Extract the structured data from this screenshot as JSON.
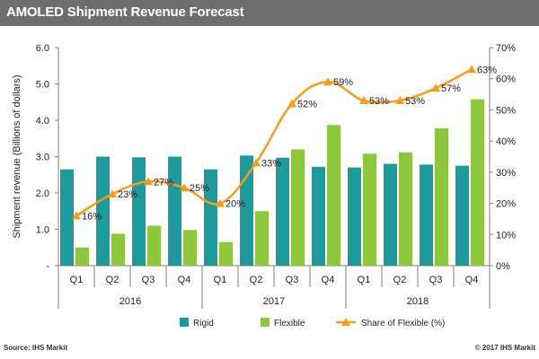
{
  "header": {
    "title": "AMOLED  Shipment Revenue Forecast"
  },
  "footer": {
    "source": "Source:  IHS Markit",
    "copyright": "© 2017  IHS Markit"
  },
  "colors": {
    "rigid": "#1f9a9b",
    "flexible": "#8dc63f",
    "share": "#f39c1f",
    "title_bg": "#6e6e6e"
  },
  "chart_data": {
    "type": "bar",
    "title": "AMOLED  Shipment Revenue Forecast",
    "ylabel": "Shipment revenue  (Billions of dollars)",
    "y2label": "",
    "ylim": [
      0,
      6
    ],
    "y2lim": [
      0,
      70
    ],
    "yticks": [
      "-",
      "1.0",
      "2.0",
      "3.0",
      "4.0",
      "5.0",
      "6.0"
    ],
    "y2ticks": [
      "0%",
      "10%",
      "20%",
      "30%",
      "40%",
      "50%",
      "60%",
      "70%"
    ],
    "categories": [
      "Q1",
      "Q2",
      "Q3",
      "Q4",
      "Q1",
      "Q2",
      "Q3",
      "Q4",
      "Q1",
      "Q2",
      "Q3",
      "Q4"
    ],
    "groups": [
      {
        "label": "2016",
        "count": 4
      },
      {
        "label": "2017",
        "count": 4
      },
      {
        "label": "2018",
        "count": 4
      }
    ],
    "series": [
      {
        "name": "Rigid",
        "type": "bar",
        "axis": "left",
        "values": [
          2.65,
          3.0,
          2.98,
          3.0,
          2.65,
          3.03,
          2.97,
          2.72,
          2.7,
          2.8,
          2.78,
          2.75
        ]
      },
      {
        "name": "Flexible",
        "type": "bar",
        "axis": "left",
        "values": [
          0.5,
          0.88,
          1.1,
          0.98,
          0.65,
          1.5,
          3.2,
          3.87,
          3.08,
          3.12,
          3.78,
          4.58
        ]
      },
      {
        "name": "Share of Flexible (%)",
        "type": "line",
        "axis": "right",
        "values": [
          16,
          23,
          27,
          25,
          20,
          33,
          52,
          59,
          53,
          53,
          57,
          63
        ],
        "labels": [
          "16%",
          "23%",
          "27%",
          "25%",
          "20%",
          "33%",
          "52%",
          "59%",
          "53%",
          "53%",
          "57%",
          "63%"
        ]
      }
    ],
    "legend": [
      "Rigid",
      "Flexible",
      "Share of Flexible (%)"
    ],
    "legend_position": "bottom"
  }
}
